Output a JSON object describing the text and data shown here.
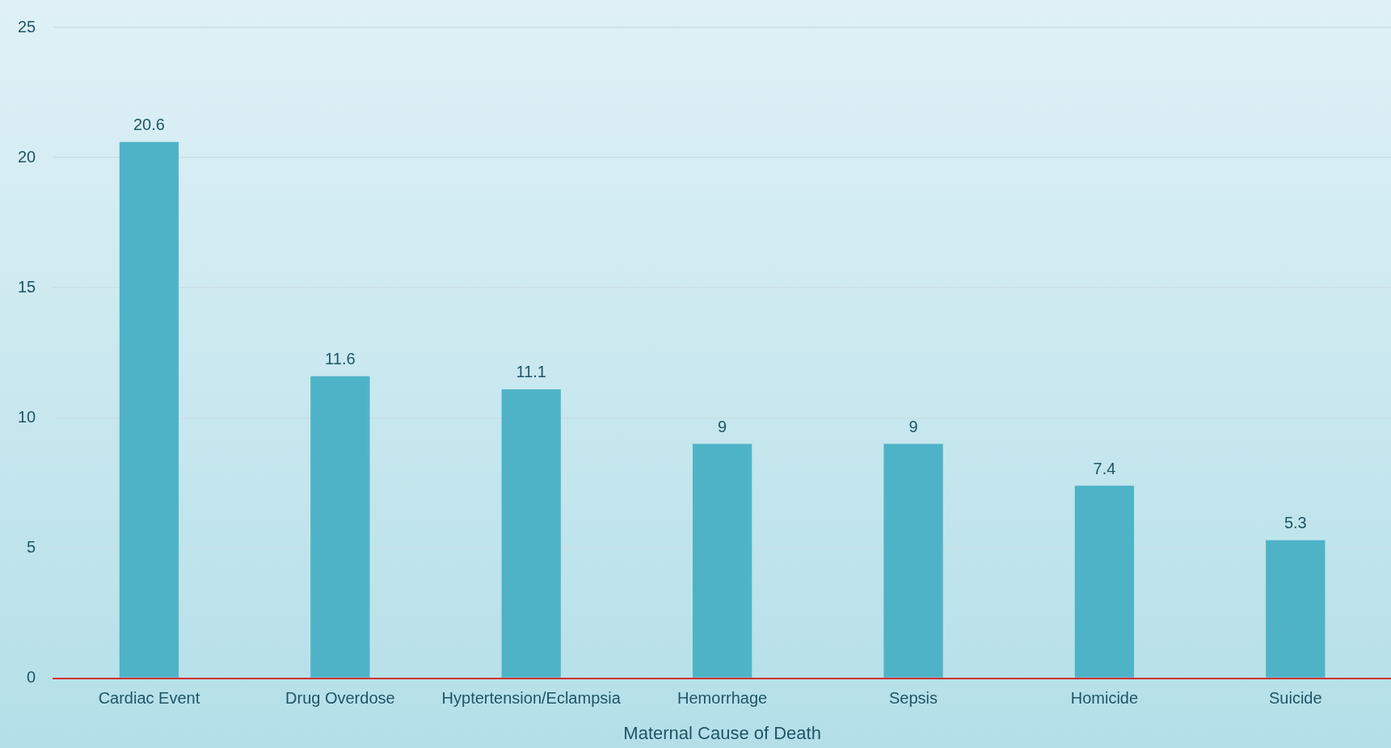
{
  "chart_data": {
    "type": "bar",
    "xlabel": "Maternal Cause of Death",
    "categories": [
      "Cardiac Event",
      "Drug Overdose",
      "Hyptertension/Eclampsia",
      "Hemorrhage",
      "Sepsis",
      "Homicide",
      "Suicide"
    ],
    "values": [
      20.6,
      11.6,
      11.1,
      9,
      9,
      7.4,
      5.3
    ],
    "color": "#4fb3c8",
    "ylim": [
      0,
      25
    ],
    "yticks": [
      0,
      5,
      10,
      15,
      20,
      25
    ],
    "grid": "y",
    "data_labels": true
  }
}
